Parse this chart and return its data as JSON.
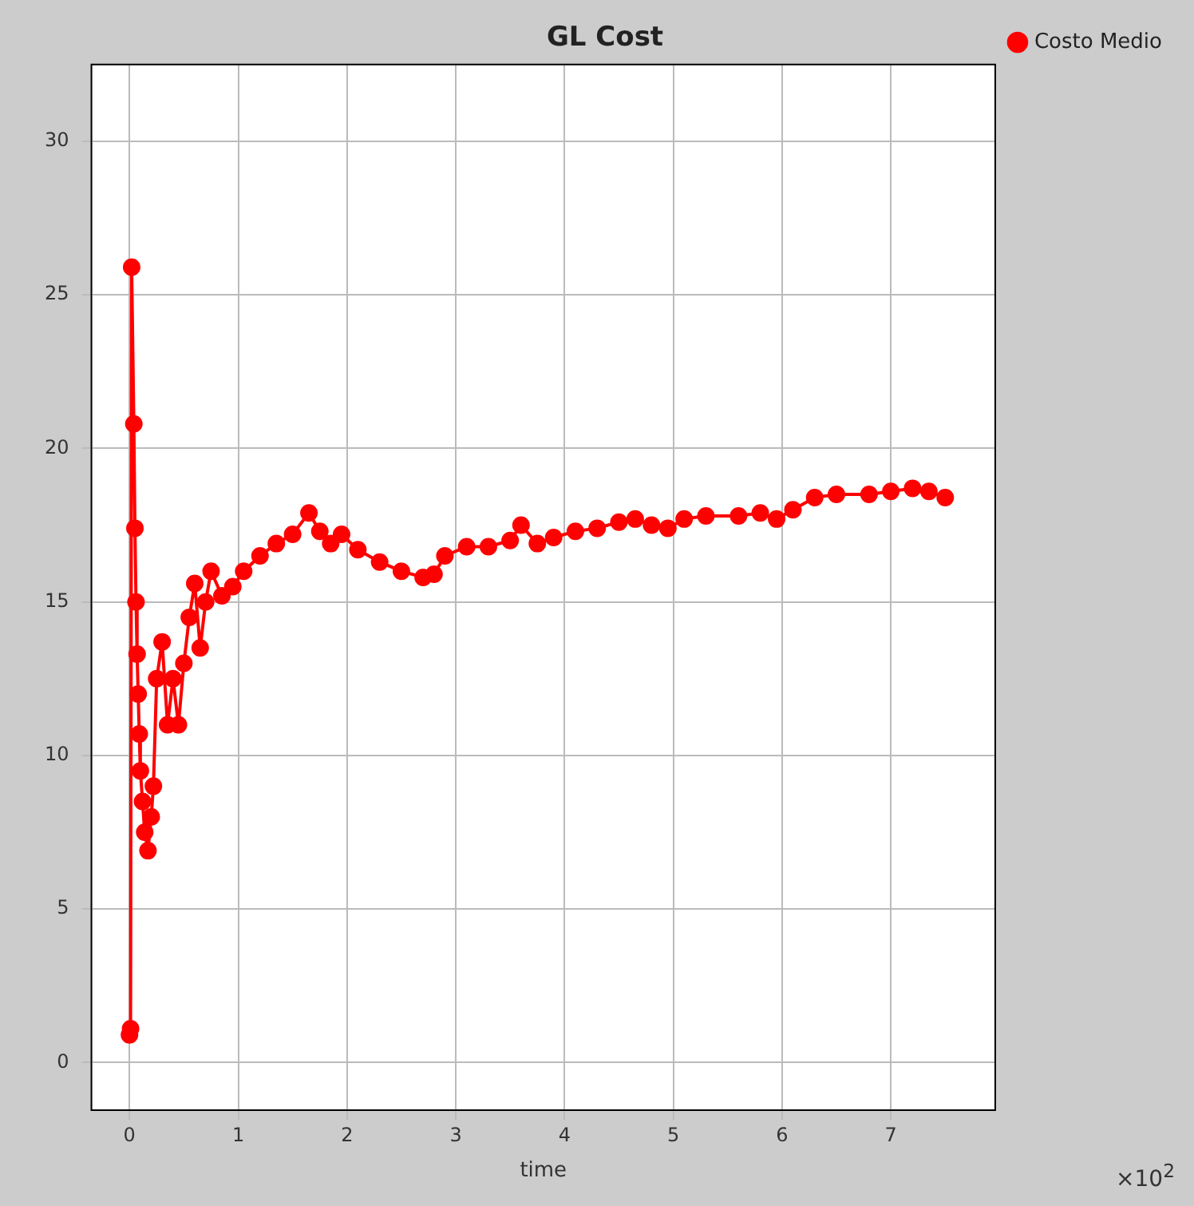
{
  "chart_data": {
    "type": "line",
    "title": "GL Cost",
    "xlabel": "time",
    "annotations": [
      "×10$^{2}$"
    ],
    "x": [
      0.0,
      0.01,
      0.02,
      0.04,
      0.05,
      0.06,
      0.07,
      0.08,
      0.09,
      0.1,
      0.12,
      0.14,
      0.17,
      0.2,
      0.22,
      0.25,
      0.3,
      0.35,
      0.4,
      0.45,
      0.5,
      0.55,
      0.6,
      0.65,
      0.7,
      0.75,
      0.85,
      0.95,
      1.05,
      1.2,
      1.35,
      1.5,
      1.65,
      1.75,
      1.85,
      1.95,
      2.1,
      2.3,
      2.5,
      2.7,
      2.8,
      2.9,
      3.1,
      3.3,
      3.5,
      3.6,
      3.75,
      3.9,
      4.1,
      4.3,
      4.5,
      4.65,
      4.8,
      4.95,
      5.1,
      5.3,
      5.6,
      5.8,
      5.95,
      6.1,
      6.3,
      6.5,
      6.8,
      7.0,
      7.2,
      7.35,
      7.5
    ],
    "series": [
      {
        "name": "Costo Medio",
        "color": "#ff0000",
        "values": [
          0.9,
          1.1,
          25.9,
          20.8,
          17.4,
          15.0,
          13.3,
          12.0,
          10.7,
          9.5,
          8.5,
          7.5,
          6.9,
          8.0,
          9.0,
          12.5,
          13.7,
          11.0,
          12.5,
          11.0,
          13.0,
          14.5,
          15.6,
          13.5,
          15.0,
          16.0,
          15.2,
          15.5,
          16.0,
          16.5,
          16.9,
          17.2,
          17.9,
          17.3,
          16.9,
          17.2,
          16.7,
          16.3,
          16.0,
          15.8,
          15.9,
          16.5,
          16.8,
          16.8,
          17.0,
          17.5,
          16.9,
          17.1,
          17.3,
          17.4,
          17.6,
          17.7,
          17.5,
          17.4,
          17.7,
          17.8,
          17.8,
          17.9,
          17.7,
          18.0,
          18.4,
          18.5,
          18.5,
          18.6,
          18.7,
          18.6,
          18.4
        ]
      }
    ],
    "xlim": [
      -0.35,
      7.96
    ],
    "xticks": [
      0,
      1,
      2,
      3,
      4,
      5,
      6,
      7
    ],
    "ylim": [
      -1.55,
      32.5
    ],
    "yticks": [
      0,
      5,
      10,
      15,
      20,
      25,
      30
    ],
    "grid": true,
    "legend": "top right",
    "marker": "circle",
    "line_style": "solid"
  }
}
